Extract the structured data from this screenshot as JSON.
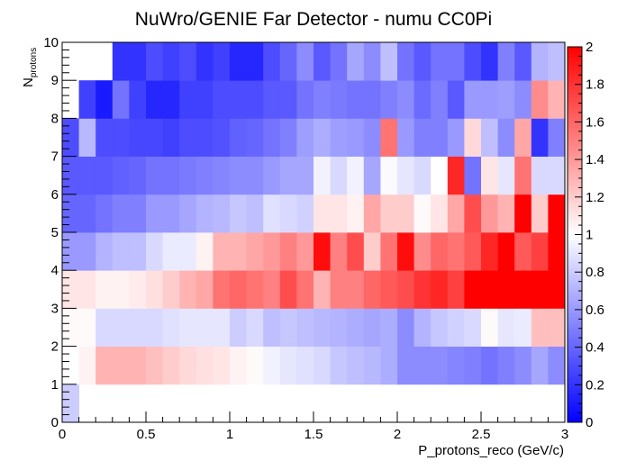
{
  "chart_data": {
    "type": "heatmap",
    "title": "NuWro/GENIE Far Detector - numu CC0Pi",
    "xlabel": "P_protons_reco (GeV/c)",
    "ylabel": {
      "main": "N",
      "sub": "protons"
    },
    "xlim": [
      0,
      3
    ],
    "ylim": [
      0,
      10
    ],
    "zlim": [
      0,
      2
    ],
    "x_ticks": [
      "0",
      "0.5",
      "1",
      "1.5",
      "2",
      "2.5",
      "3"
    ],
    "y_ticks": [
      "0",
      "1",
      "2",
      "3",
      "4",
      "5",
      "6",
      "7",
      "8",
      "9",
      "10"
    ],
    "z_ticks": [
      "0",
      "0.2",
      "0.4",
      "0.6",
      "0.8",
      "1",
      "1.2",
      "1.4",
      "1.6",
      "1.8",
      "2"
    ],
    "colormap": {
      "low": "#0000ff",
      "mid": "#ffffff",
      "high": "#ff0000"
    },
    "x_bin_edges": [
      0,
      0.1,
      0.2,
      0.3,
      0.4,
      0.5,
      0.6,
      0.7,
      0.8,
      0.9,
      1.0,
      1.1,
      1.2,
      1.3,
      1.4,
      1.5,
      1.6,
      1.7,
      1.8,
      1.9,
      2.0,
      2.1,
      2.2,
      2.3,
      2.4,
      2.5,
      2.6,
      2.7,
      2.8,
      2.9,
      3.0
    ],
    "y_bin_edges": [
      0,
      1,
      2,
      3,
      4,
      5,
      6,
      7,
      8,
      9,
      10
    ],
    "z": [
      [
        0.8,
        null,
        null,
        null,
        null,
        null,
        null,
        null,
        null,
        null,
        null,
        null,
        null,
        null,
        null,
        null,
        null,
        null,
        null,
        null,
        null,
        null,
        null,
        null,
        null,
        null,
        null,
        null,
        null,
        null
      ],
      [
        null,
        1.05,
        1.3,
        1.3,
        1.3,
        1.25,
        1.2,
        1.15,
        1.12,
        1.1,
        1.05,
        1.02,
        0.95,
        0.9,
        0.88,
        0.85,
        0.78,
        0.75,
        0.72,
        0.68,
        0.55,
        0.55,
        0.55,
        0.52,
        0.5,
        0.45,
        0.5,
        0.55,
        0.65,
        0.55
      ],
      [
        1.02,
        1.02,
        0.85,
        0.85,
        0.85,
        0.85,
        0.88,
        0.9,
        0.9,
        0.9,
        0.8,
        0.85,
        0.75,
        0.78,
        0.75,
        0.72,
        0.7,
        0.68,
        0.65,
        0.68,
        0.55,
        0.7,
        0.78,
        0.82,
        0.85,
        1.02,
        0.9,
        0.92,
        1.25,
        1.25
      ],
      [
        1.1,
        1.1,
        1.05,
        1.05,
        1.08,
        1.12,
        1.2,
        1.3,
        1.35,
        1.55,
        1.6,
        1.55,
        1.5,
        1.7,
        1.55,
        1.3,
        1.5,
        1.5,
        1.6,
        1.65,
        1.7,
        1.8,
        1.85,
        1.75,
        2.0,
        2.0,
        2.0,
        2.0,
        2.0,
        2.0
      ],
      [
        0.6,
        0.6,
        0.7,
        0.75,
        0.75,
        0.85,
        0.92,
        0.92,
        1.05,
        1.3,
        1.3,
        1.35,
        1.4,
        1.5,
        1.4,
        1.95,
        1.5,
        1.7,
        1.2,
        1.55,
        1.95,
        1.45,
        1.6,
        1.55,
        1.65,
        1.85,
        2.0,
        1.65,
        1.75,
        2.0
      ],
      [
        0.4,
        0.4,
        0.45,
        0.5,
        0.5,
        0.6,
        0.6,
        0.65,
        0.7,
        0.72,
        0.78,
        0.75,
        0.88,
        0.85,
        0.82,
        1.1,
        1.1,
        1.05,
        1.35,
        1.2,
        1.2,
        1.02,
        1.1,
        1.35,
        1.7,
        1.4,
        1.3,
        2.0,
        1.2,
        2.0
      ],
      [
        0.35,
        0.35,
        0.35,
        0.38,
        0.4,
        0.45,
        0.45,
        0.48,
        0.5,
        0.52,
        0.55,
        0.55,
        0.6,
        0.65,
        0.65,
        0.95,
        0.85,
        0.95,
        0.65,
        0.98,
        0.9,
        0.85,
        1.0,
        1.85,
        0.45,
        1.1,
        0.9,
        1.55,
        0.85,
        0.85
      ],
      [
        0.3,
        0.72,
        0.3,
        0.3,
        0.28,
        0.28,
        0.25,
        0.3,
        0.3,
        0.32,
        0.38,
        0.4,
        0.45,
        0.5,
        0.62,
        0.68,
        0.62,
        0.6,
        0.55,
        1.55,
        0.6,
        0.5,
        0.5,
        0.6,
        1.15,
        0.75,
        0.55,
        1.35,
        0.2,
        0.5
      ],
      [
        null,
        0.25,
        0.1,
        0.45,
        0.25,
        0.15,
        0.15,
        0.25,
        0.25,
        0.3,
        0.3,
        0.3,
        0.35,
        0.35,
        0.45,
        0.5,
        0.48,
        0.45,
        0.45,
        0.5,
        0.55,
        0.42,
        0.5,
        0.35,
        0.6,
        0.6,
        0.62,
        0.55,
        1.45,
        1.3
      ],
      [
        null,
        null,
        null,
        0.2,
        0.2,
        0.3,
        0.25,
        0.3,
        0.2,
        0.25,
        0.15,
        0.15,
        0.3,
        0.4,
        0.55,
        0.35,
        0.45,
        0.65,
        0.55,
        0.75,
        0.45,
        0.35,
        0.45,
        0.45,
        0.3,
        0.2,
        0.5,
        0.35,
        0.7,
        0.75
      ]
    ]
  }
}
